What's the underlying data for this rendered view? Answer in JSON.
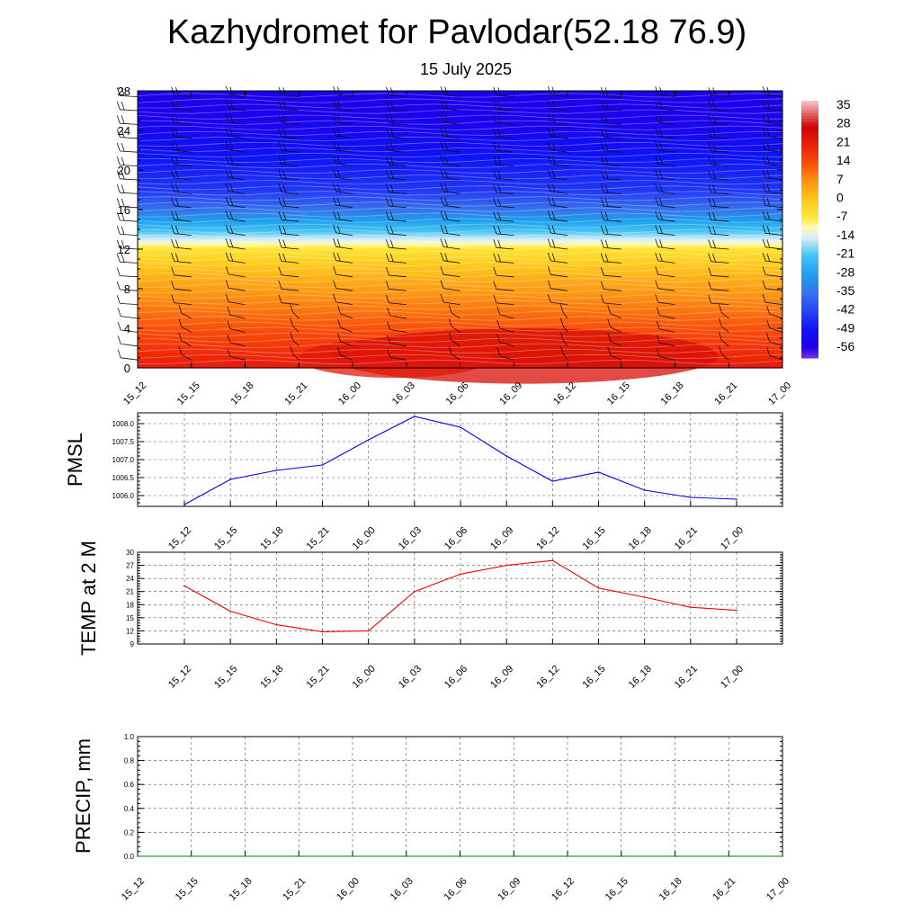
{
  "title": "Kazhydromet for Pavlodar(52.18 76.9)",
  "subtitle": "15 July 2025",
  "colors": {
    "pmsl_line": "#0000ff",
    "temp_line": "#ff0000",
    "precip_line": "#008000",
    "grid": "#555555"
  },
  "chart_data": [
    {
      "id": "cross-section",
      "type": "heatmap",
      "x": [
        "15_12",
        "15_15",
        "15_18",
        "15_21",
        "16_00",
        "16_03",
        "16_06",
        "16_09",
        "16_12",
        "16_15",
        "16_18",
        "16_21",
        "17_00"
      ],
      "y_ticks": [
        0,
        4,
        8,
        12,
        16,
        20,
        24,
        28
      ],
      "ylim": [
        0,
        28
      ],
      "levels_temperature": [
        {
          "level": 0,
          "value": 22
        },
        {
          "level": 2,
          "value": 18
        },
        {
          "level": 4,
          "value": 14
        },
        {
          "level": 6,
          "value": 10
        },
        {
          "level": 8,
          "value": 6
        },
        {
          "level": 10,
          "value": 1
        },
        {
          "level": 12,
          "value": -5
        },
        {
          "level": 13,
          "value": -14
        },
        {
          "level": 14,
          "value": -22
        },
        {
          "level": 16,
          "value": -35
        },
        {
          "level": 18,
          "value": -44
        },
        {
          "level": 20,
          "value": -47
        },
        {
          "level": 22,
          "value": -50
        },
        {
          "level": 24,
          "value": -53
        },
        {
          "level": 26,
          "value": -55
        },
        {
          "level": 28,
          "value": -56
        }
      ],
      "colorbar": {
        "labels": [
          "35",
          "28",
          "21",
          "14",
          "7",
          "0",
          "-7",
          "-14",
          "-21",
          "-28",
          "-35",
          "-42",
          "-49",
          "-56"
        ],
        "range": [
          -60,
          38
        ]
      },
      "wind_barbs": true
    },
    {
      "id": "pmsl",
      "type": "line",
      "ylabel": "PMSL",
      "x": [
        "15_12",
        "15_15",
        "15_18",
        "15_21",
        "16_00",
        "16_03",
        "16_06",
        "16_09",
        "16_12",
        "16_15",
        "16_18",
        "16_21",
        "17_00"
      ],
      "values": [
        1005.75,
        1006.45,
        1006.7,
        1006.85,
        1007.55,
        1008.2,
        1007.9,
        1007.1,
        1006.4,
        1006.65,
        1006.15,
        1005.95,
        1005.9
      ],
      "ylim": [
        1005.7,
        1008.3
      ],
      "y_ticks": [
        "1006.0",
        "1006.5",
        "1007.0",
        "1007.5",
        "1008.0"
      ],
      "y_tick_values": [
        1006.0,
        1006.5,
        1007.0,
        1007.5,
        1008.0
      ],
      "grid": true
    },
    {
      "id": "temp2m",
      "type": "line",
      "ylabel": "TEMP at 2 M",
      "x": [
        "15_12",
        "15_15",
        "15_18",
        "15_21",
        "16_00",
        "16_03",
        "16_06",
        "16_09",
        "16_12",
        "16_15",
        "16_18",
        "16_21",
        "17_00"
      ],
      "values": [
        22.3,
        16.5,
        13.4,
        11.8,
        12.0,
        21.0,
        25.0,
        27.0,
        28.1,
        21.8,
        19.7,
        17.4,
        16.7
      ],
      "ylim": [
        9,
        30
      ],
      "y_ticks": [
        "9",
        "12",
        "15",
        "18",
        "21",
        "24",
        "27",
        "30"
      ],
      "y_tick_values": [
        9,
        12,
        15,
        18,
        21,
        24,
        27,
        30
      ],
      "grid": true
    },
    {
      "id": "precip",
      "type": "line",
      "ylabel": "PRECIP, mm",
      "x": [
        "15_12",
        "15_15",
        "15_18",
        "15_21",
        "16_00",
        "16_03",
        "16_06",
        "16_09",
        "16_12",
        "16_15",
        "16_18",
        "16_21",
        "17_00"
      ],
      "values": [
        0,
        0,
        0,
        0,
        0,
        0,
        0,
        0,
        0,
        0,
        0,
        0,
        0
      ],
      "ylim": [
        0,
        1
      ],
      "y_ticks": [
        "0.0",
        "0.2",
        "0.4",
        "0.6",
        "0.8",
        "1.0"
      ],
      "y_tick_values": [
        0,
        0.2,
        0.4,
        0.6,
        0.8,
        1.0
      ],
      "grid": true
    }
  ]
}
